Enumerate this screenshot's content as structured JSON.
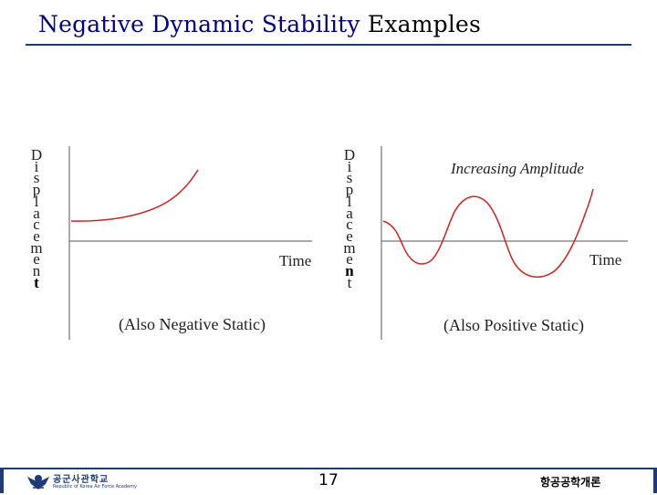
{
  "slide": {
    "title_part1": "Negative Dynamic Stability",
    "title_part2": " Examples",
    "page_number": "17",
    "course_name": "항공공학개론",
    "school_name": "공군사관학교",
    "school_subtitle": "Republic of Korea Air Force Academy"
  },
  "left_plot": {
    "ylabel_letters": [
      "D",
      "i",
      "s",
      "p",
      "l",
      "a",
      "c",
      "e",
      "m",
      "e",
      "n",
      "t"
    ],
    "xlabel": "Time",
    "caption": "(Also Negative Static)",
    "line_color": "#cc2222"
  },
  "right_plot": {
    "ylabel_letters": [
      "D",
      "i",
      "s",
      "p",
      "l",
      "a",
      "c",
      "e",
      "m",
      "e",
      "n",
      "t"
    ],
    "xlabel": "Time",
    "caption": "(Also Positive Static)",
    "annotation": "Increasing Amplitude",
    "line_color": "#cc2222"
  },
  "colors": {
    "accent": "#1f3a7a",
    "curve": "#cc2222",
    "title": "#000080"
  }
}
